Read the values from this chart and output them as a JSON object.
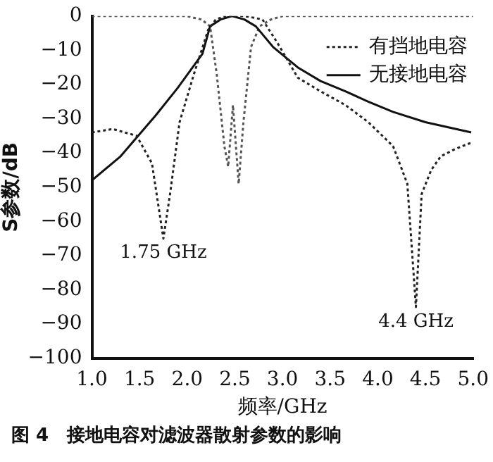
{
  "chart_data": {
    "type": "line",
    "xlabel": "频率/GHz",
    "ylabel": "S参数/dB",
    "xlim": [
      1.0,
      5.0
    ],
    "xticks": [
      {
        "value": 1,
        "label": "1.0"
      },
      {
        "value": 1.5,
        "label": "1.5"
      },
      {
        "value": 2,
        "label": "2.0"
      },
      {
        "value": 2.5,
        "label": "2.5"
      },
      {
        "value": 3,
        "label": "3.0"
      },
      {
        "value": 3.5,
        "label": "3.5"
      },
      {
        "value": 4,
        "label": "4.0"
      },
      {
        "value": 4.5,
        "label": "4.5"
      },
      {
        "value": 5,
        "label": "5.0"
      }
    ],
    "ylim": [
      -100,
      0
    ],
    "yticks": [
      -100,
      -90,
      -80,
      -70,
      -60,
      -50,
      -40,
      -30,
      -20,
      -10,
      0
    ],
    "grid": false,
    "legend": "top right",
    "marker": "none",
    "series": [
      {
        "name": "有挡地电容",
        "color": "#222222",
        "line_style": "dotted",
        "x": [
          1.0,
          1.22,
          1.47,
          1.63,
          1.75,
          1.82,
          1.92,
          2.07,
          2.22,
          2.3,
          2.4,
          2.5,
          2.6,
          2.7,
          2.79,
          2.95,
          3.16,
          3.4,
          3.66,
          3.9,
          4.16,
          4.31,
          4.4,
          4.46,
          4.56,
          4.66,
          4.8,
          4.98
        ],
        "values": [
          -34,
          -33,
          -35,
          -43,
          -65,
          -52,
          -31,
          -17,
          -4,
          -1,
          0,
          0,
          0,
          -0.5,
          -1,
          -8,
          -18,
          -22,
          -26,
          -31,
          -38,
          -49,
          -85,
          -52,
          -45,
          -41,
          -39,
          -37
        ]
      },
      {
        "name": "无接地电容",
        "color": "#111111",
        "line_style": "solid",
        "x": [
          1.0,
          1.3,
          1.67,
          1.9,
          2.16,
          2.24,
          2.35,
          2.47,
          2.6,
          2.72,
          2.9,
          3.16,
          3.4,
          3.66,
          3.9,
          4.16,
          4.5,
          4.98
        ],
        "values": [
          -48,
          -41,
          -29,
          -21,
          -11,
          -3,
          -1,
          0,
          -1,
          -3,
          -9,
          -15,
          -19,
          -22,
          -25,
          -28,
          -31,
          -34
        ]
      },
      {
        "color": "#555555",
        "line_style": "dotted",
        "x": [
          1.0,
          1.5,
          2.0,
          2.07,
          2.15,
          2.24,
          2.31,
          2.39,
          2.43,
          2.48,
          2.54,
          2.59,
          2.67,
          2.76,
          2.88,
          3.0,
          4.0,
          5.0
        ],
        "values": [
          0,
          0,
          0,
          -0.5,
          -1,
          -3,
          -17,
          -38,
          -44,
          -26,
          -49,
          -31,
          -9,
          -3,
          -1,
          0,
          0,
          0
        ]
      }
    ],
    "annotations": [
      {
        "text": "1.75 GHz",
        "x": 1.75,
        "y": -65
      },
      {
        "text": "4.4 GHz",
        "x": 4.4,
        "y": -85
      },
      "图 4　接地电容对滤波器散射参数的影响"
    ]
  }
}
